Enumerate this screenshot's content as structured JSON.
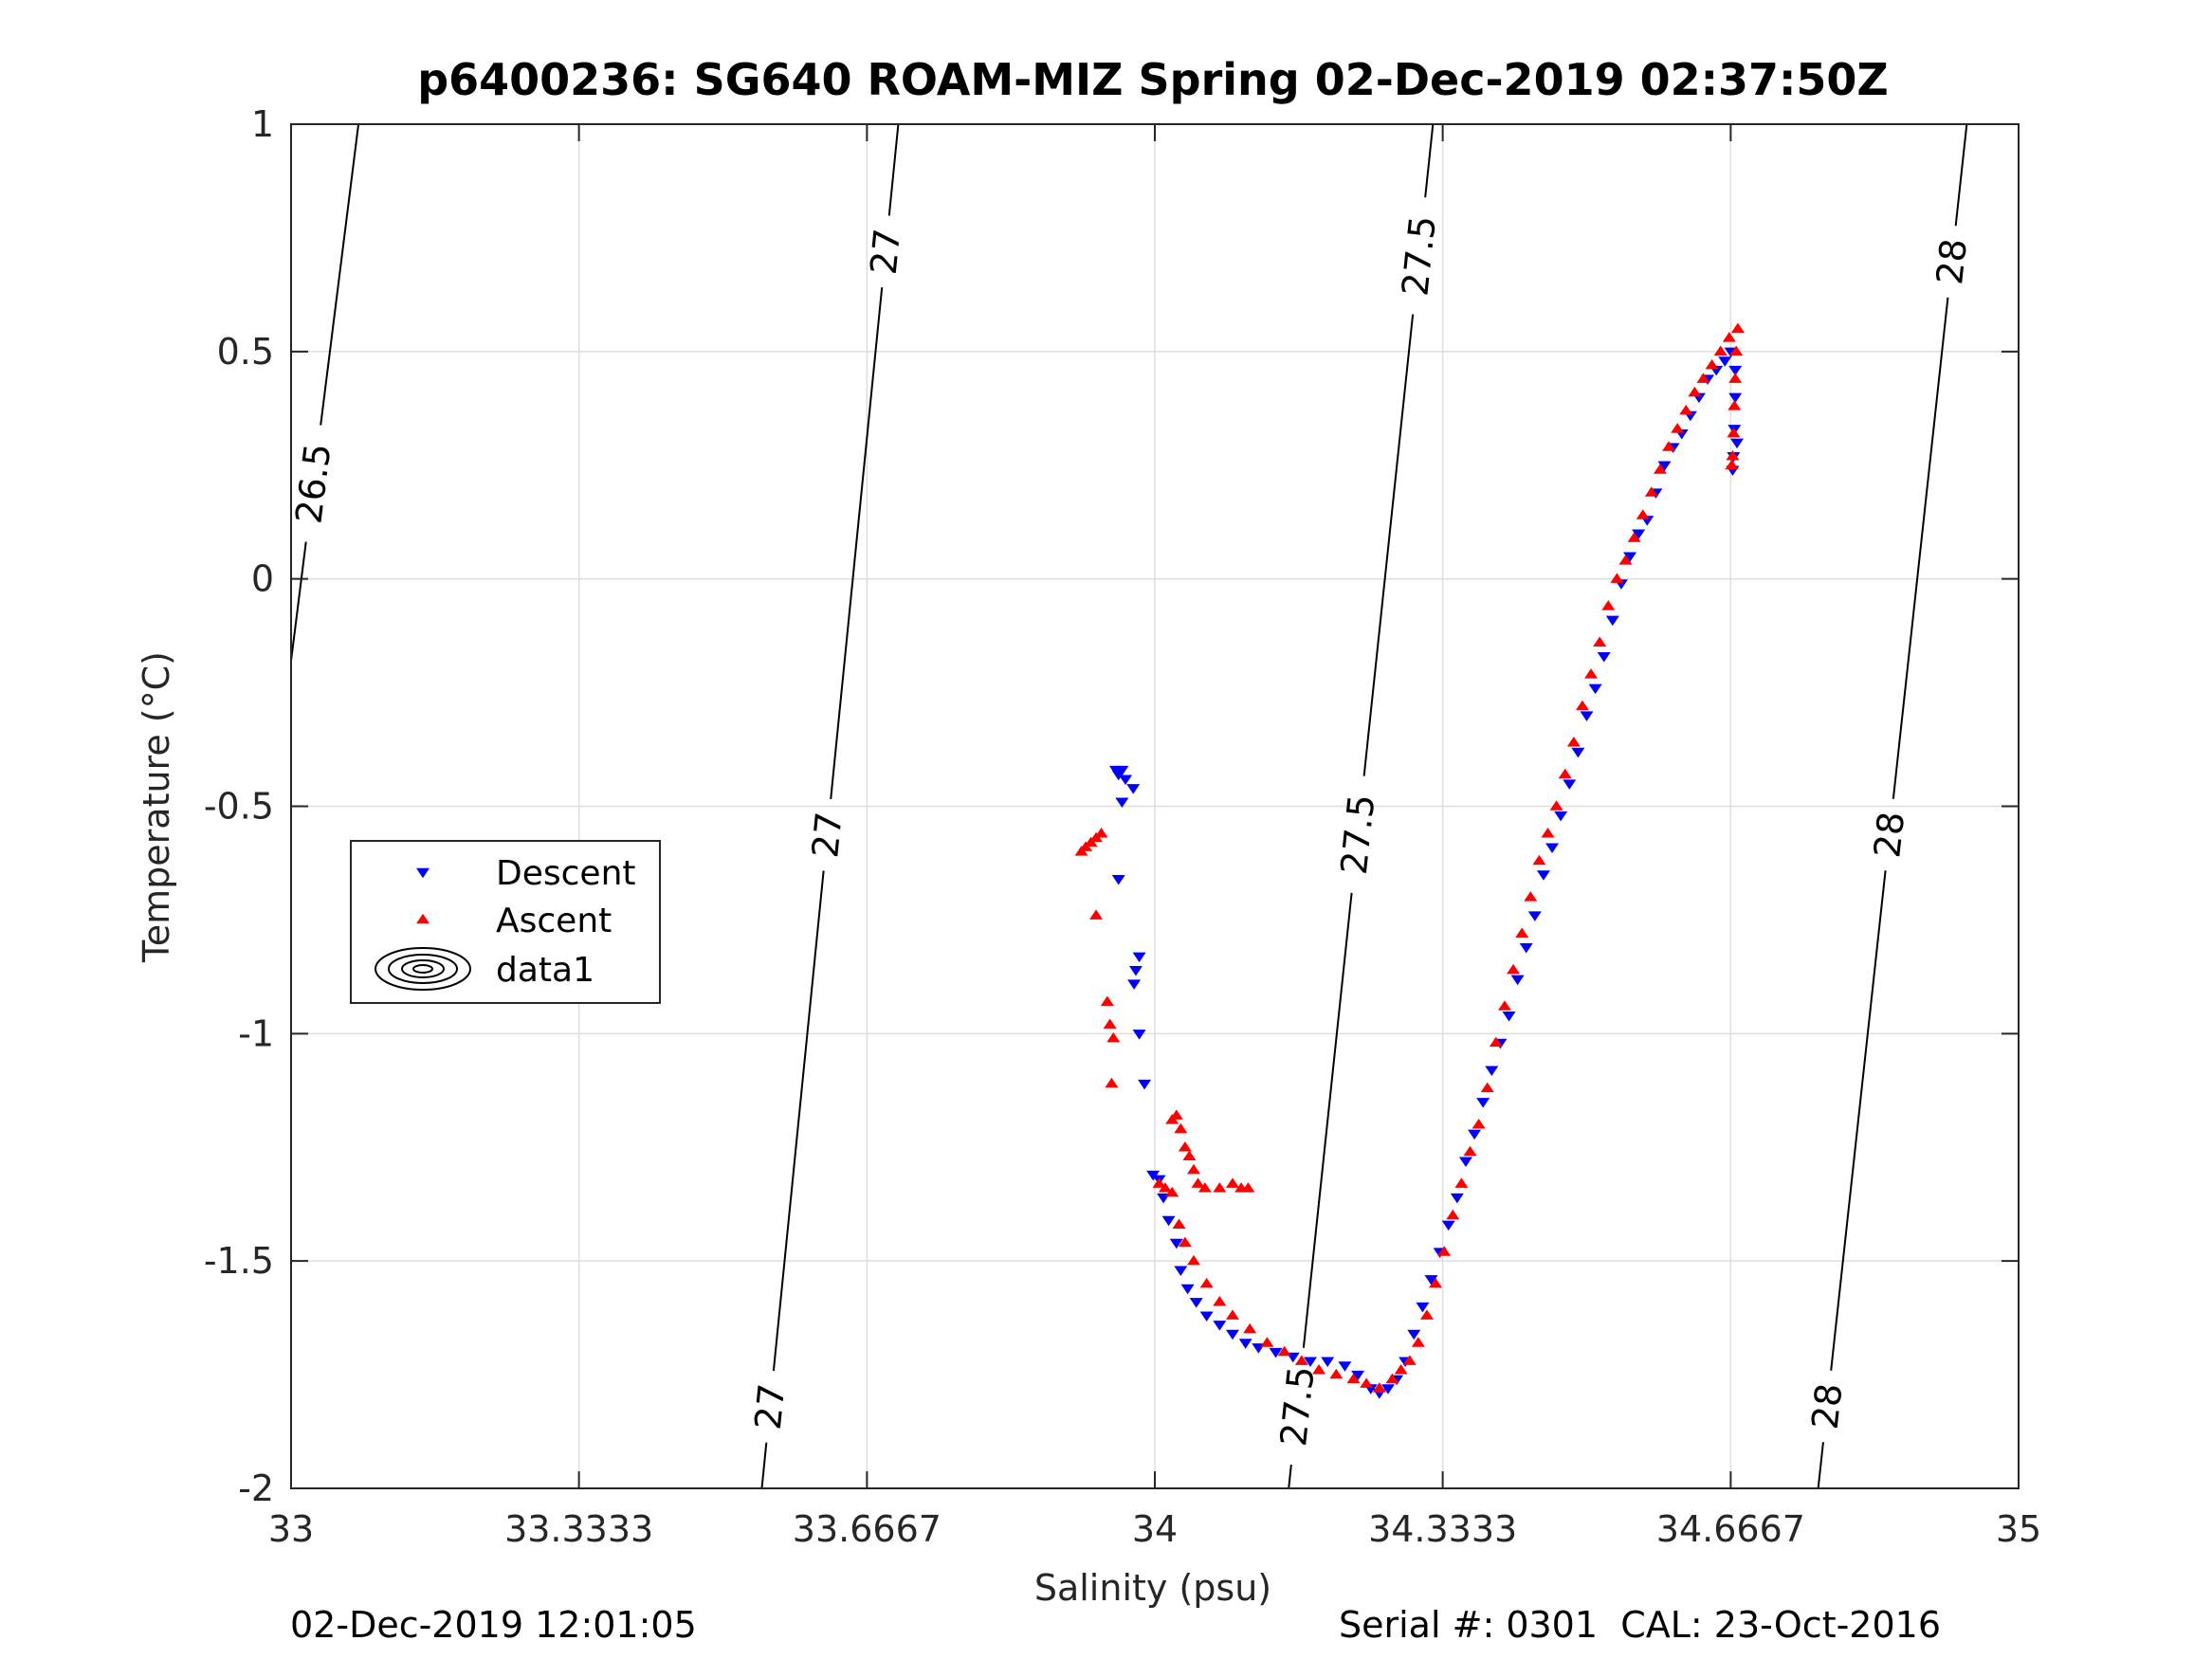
{
  "figure": {
    "title": "p6400236: SG640 ROAM-MIZ Spring 02-Dec-2019 02:37:50Z",
    "footer_left": "02-Dec-2019 12:01:05",
    "footer_right": "Serial #: 0301  CAL: 23-Oct-2016"
  },
  "chart_data": {
    "type": "scatter",
    "title": "p6400236: SG640 ROAM-MIZ Spring 02-Dec-2019 02:37:50Z",
    "xlabel": "Salinity (psu)",
    "ylabel": "Temperature (°C)",
    "xlim": [
      33,
      35
    ],
    "ylim": [
      -2,
      1
    ],
    "grid": true,
    "x_ticks": [
      33,
      33.3333,
      33.6667,
      34,
      34.3333,
      34.6667,
      35
    ],
    "x_tick_labels": [
      "33",
      "33.3333",
      "33.6667",
      "34",
      "34.3333",
      "34.6667",
      "35"
    ],
    "y_ticks": [
      1,
      0.5,
      0,
      -0.5,
      -1,
      -1.5,
      -2
    ],
    "y_tick_labels": [
      "1",
      "0.5",
      "0",
      "-0.5",
      "-1",
      "-1.5",
      "-2"
    ],
    "legend": {
      "position": "left",
      "entries": [
        {
          "label": "Descent",
          "marker": "triangle-down",
          "color": "#0000ff"
        },
        {
          "label": "Ascent",
          "marker": "triangle-up",
          "color": "#ff0000"
        },
        {
          "label": "data1",
          "marker": "contour",
          "color": "#000000"
        }
      ]
    },
    "contours": [
      {
        "level": "26.5",
        "points": [
          [
            33.0,
            -0.18
          ],
          [
            33.078,
            1.0
          ]
        ],
        "labels": [
          {
            "x": 33.025,
            "y": 0.21,
            "text": "26.5"
          }
        ]
      },
      {
        "level": "27",
        "points": [
          [
            33.545,
            -2.0
          ],
          [
            33.703,
            1.0
          ]
        ],
        "labels": [
          {
            "x": 33.635,
            "y": 0.73,
            "text": "27"
          },
          {
            "x": 33.605,
            "y": -0.56,
            "text": "27"
          },
          {
            "x": 33.552,
            "y": -1.82,
            "text": "27"
          }
        ]
      },
      {
        "level": "27.5",
        "points": [
          [
            34.155,
            -2.0
          ],
          [
            34.322,
            1.0
          ]
        ],
        "labels": [
          {
            "x": 34.308,
            "y": 0.71,
            "text": "27.5"
          },
          {
            "x": 34.225,
            "y": -0.56,
            "text": "27.5"
          },
          {
            "x": 34.168,
            "y": -1.82,
            "text": "27.5"
          }
        ]
      },
      {
        "level": "28",
        "points": [
          [
            34.768,
            -2.0
          ],
          [
            34.94,
            1.0
          ]
        ],
        "labels": [
          {
            "x": 34.912,
            "y": 0.7,
            "text": "28"
          },
          {
            "x": 34.838,
            "y": -0.56,
            "text": "28"
          },
          {
            "x": 34.78,
            "y": -1.82,
            "text": "28"
          }
        ]
      }
    ],
    "series": [
      {
        "name": "Descent",
        "marker": "triangle-down",
        "color": "#0000ff",
        "points": [
          [
            33.955,
            -0.42
          ],
          [
            33.962,
            -0.42
          ],
          [
            33.958,
            -0.43
          ],
          [
            33.966,
            -0.44
          ],
          [
            33.975,
            -0.46
          ],
          [
            33.962,
            -0.49
          ],
          [
            33.958,
            -0.66
          ],
          [
            33.982,
            -0.83
          ],
          [
            33.978,
            -0.86
          ],
          [
            33.976,
            -0.89
          ],
          [
            33.982,
            -1.0
          ],
          [
            33.988,
            -1.11
          ],
          [
            33.998,
            -1.31
          ],
          [
            34.005,
            -1.32
          ],
          [
            34.01,
            -1.36
          ],
          [
            34.016,
            -1.41
          ],
          [
            34.025,
            -1.46
          ],
          [
            34.03,
            -1.52
          ],
          [
            34.038,
            -1.56
          ],
          [
            34.048,
            -1.59
          ],
          [
            34.06,
            -1.62
          ],
          [
            34.075,
            -1.64
          ],
          [
            34.09,
            -1.66
          ],
          [
            34.105,
            -1.68
          ],
          [
            34.12,
            -1.69
          ],
          [
            34.14,
            -1.7
          ],
          [
            34.16,
            -1.71
          ],
          [
            34.18,
            -1.72
          ],
          [
            34.2,
            -1.72
          ],
          [
            34.22,
            -1.73
          ],
          [
            34.235,
            -1.75
          ],
          [
            34.25,
            -1.78
          ],
          [
            34.26,
            -1.79
          ],
          [
            34.27,
            -1.78
          ],
          [
            34.28,
            -1.76
          ],
          [
            34.29,
            -1.72
          ],
          [
            34.3,
            -1.66
          ],
          [
            34.31,
            -1.6
          ],
          [
            34.32,
            -1.54
          ],
          [
            34.33,
            -1.48
          ],
          [
            34.34,
            -1.42
          ],
          [
            34.35,
            -1.36
          ],
          [
            34.36,
            -1.28
          ],
          [
            34.37,
            -1.22
          ],
          [
            34.38,
            -1.15
          ],
          [
            34.39,
            -1.08
          ],
          [
            34.4,
            -1.02
          ],
          [
            34.41,
            -0.96
          ],
          [
            34.42,
            -0.88
          ],
          [
            34.43,
            -0.81
          ],
          [
            34.44,
            -0.74
          ],
          [
            34.45,
            -0.65
          ],
          [
            34.46,
            -0.59
          ],
          [
            34.47,
            -0.52
          ],
          [
            34.48,
            -0.45
          ],
          [
            34.49,
            -0.38
          ],
          [
            34.5,
            -0.3
          ],
          [
            34.51,
            -0.24
          ],
          [
            34.52,
            -0.17
          ],
          [
            34.53,
            -0.09
          ],
          [
            34.54,
            -0.01
          ],
          [
            34.55,
            0.05
          ],
          [
            34.56,
            0.1
          ],
          [
            34.57,
            0.13
          ],
          [
            34.58,
            0.19
          ],
          [
            34.59,
            0.25
          ],
          [
            34.6,
            0.29
          ],
          [
            34.61,
            0.32
          ],
          [
            34.62,
            0.36
          ],
          [
            34.63,
            0.4
          ],
          [
            34.64,
            0.44
          ],
          [
            34.65,
            0.46
          ],
          [
            34.66,
            0.48
          ],
          [
            34.667,
            0.5
          ],
          [
            34.672,
            0.46
          ],
          [
            34.672,
            0.4
          ],
          [
            34.671,
            0.33
          ],
          [
            34.67,
            0.27
          ],
          [
            34.669,
            0.24
          ],
          [
            34.674,
            0.3
          ]
        ]
      },
      {
        "name": "Ascent",
        "marker": "triangle-up",
        "color": "#ff0000",
        "points": [
          [
            33.915,
            -0.6
          ],
          [
            33.92,
            -0.59
          ],
          [
            33.926,
            -0.58
          ],
          [
            33.932,
            -0.57
          ],
          [
            33.938,
            -0.56
          ],
          [
            33.932,
            -0.74
          ],
          [
            33.945,
            -0.93
          ],
          [
            33.948,
            -0.98
          ],
          [
            33.952,
            -1.01
          ],
          [
            33.95,
            -1.11
          ],
          [
            34.02,
            -1.19
          ],
          [
            34.025,
            -1.18
          ],
          [
            34.03,
            -1.21
          ],
          [
            34.035,
            -1.25
          ],
          [
            34.04,
            -1.27
          ],
          [
            34.045,
            -1.3
          ],
          [
            34.05,
            -1.33
          ],
          [
            34.058,
            -1.34
          ],
          [
            34.075,
            -1.34
          ],
          [
            34.09,
            -1.33
          ],
          [
            34.1,
            -1.34
          ],
          [
            34.108,
            -1.34
          ],
          [
            34.005,
            -1.33
          ],
          [
            34.012,
            -1.34
          ],
          [
            34.02,
            -1.35
          ],
          [
            34.028,
            -1.42
          ],
          [
            34.035,
            -1.46
          ],
          [
            34.045,
            -1.5
          ],
          [
            34.06,
            -1.55
          ],
          [
            34.075,
            -1.59
          ],
          [
            34.09,
            -1.62
          ],
          [
            34.11,
            -1.65
          ],
          [
            34.13,
            -1.68
          ],
          [
            34.15,
            -1.7
          ],
          [
            34.17,
            -1.72
          ],
          [
            34.19,
            -1.74
          ],
          [
            34.21,
            -1.75
          ],
          [
            34.23,
            -1.76
          ],
          [
            34.245,
            -1.77
          ],
          [
            34.26,
            -1.78
          ],
          [
            34.275,
            -1.76
          ],
          [
            34.285,
            -1.74
          ],
          [
            34.295,
            -1.72
          ],
          [
            34.305,
            -1.68
          ],
          [
            34.315,
            -1.62
          ],
          [
            34.325,
            -1.55
          ],
          [
            34.335,
            -1.48
          ],
          [
            34.345,
            -1.4
          ],
          [
            34.355,
            -1.33
          ],
          [
            34.365,
            -1.26
          ],
          [
            34.375,
            -1.2
          ],
          [
            34.385,
            -1.12
          ],
          [
            34.395,
            -1.02
          ],
          [
            34.405,
            -0.94
          ],
          [
            34.415,
            -0.86
          ],
          [
            34.425,
            -0.78
          ],
          [
            34.435,
            -0.7
          ],
          [
            34.445,
            -0.62
          ],
          [
            34.455,
            -0.56
          ],
          [
            34.465,
            -0.5
          ],
          [
            34.475,
            -0.43
          ],
          [
            34.485,
            -0.36
          ],
          [
            34.495,
            -0.28
          ],
          [
            34.505,
            -0.21
          ],
          [
            34.515,
            -0.14
          ],
          [
            34.525,
            -0.06
          ],
          [
            34.535,
            0.0
          ],
          [
            34.545,
            0.04
          ],
          [
            34.555,
            0.09
          ],
          [
            34.565,
            0.14
          ],
          [
            34.575,
            0.19
          ],
          [
            34.585,
            0.24
          ],
          [
            34.595,
            0.29
          ],
          [
            34.605,
            0.33
          ],
          [
            34.615,
            0.37
          ],
          [
            34.625,
            0.41
          ],
          [
            34.635,
            0.44
          ],
          [
            34.645,
            0.47
          ],
          [
            34.655,
            0.5
          ],
          [
            34.665,
            0.53
          ],
          [
            34.675,
            0.55
          ],
          [
            34.673,
            0.5
          ],
          [
            34.672,
            0.44
          ],
          [
            34.671,
            0.38
          ],
          [
            34.67,
            0.32
          ],
          [
            34.669,
            0.27
          ],
          [
            34.668,
            0.25
          ]
        ]
      }
    ]
  }
}
